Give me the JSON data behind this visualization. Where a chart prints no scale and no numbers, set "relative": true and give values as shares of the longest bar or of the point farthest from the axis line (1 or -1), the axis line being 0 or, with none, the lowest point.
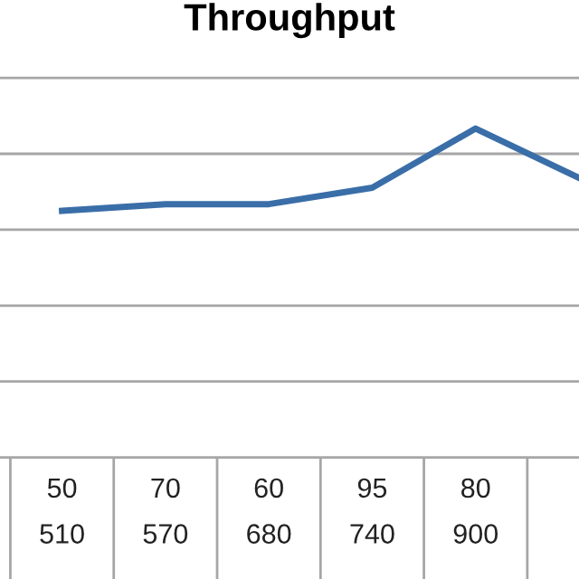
{
  "chart_data": {
    "type": "line",
    "title": "Throughput",
    "relative": true,
    "grid": "y",
    "marker": "none",
    "line_style": "solid",
    "categories": [
      "50\n510",
      "70\n570",
      "60\n680",
      "95\n740",
      "80\n900",
      null
    ],
    "series": [
      {
        "color": "#3a6ea8",
        "values": [
          0.75,
          0.77,
          0.77,
          0.82,
          1,
          0.85
        ]
      }
    ]
  }
}
